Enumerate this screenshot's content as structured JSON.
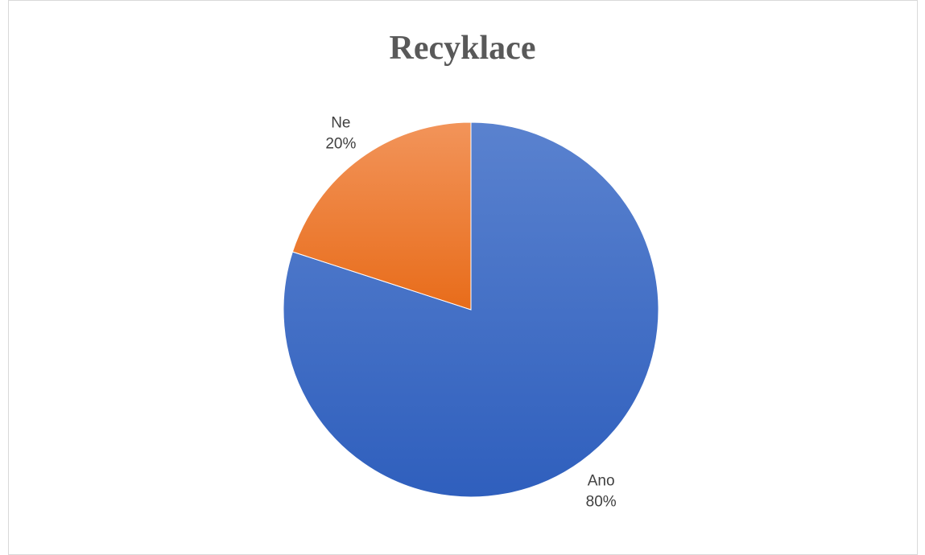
{
  "chart_data": {
    "type": "pie",
    "title": "Recyklace",
    "slices": [
      {
        "label": "Ano",
        "value": 80,
        "value_label": "80%",
        "color": "#4472c4"
      },
      {
        "label": "Ne",
        "value": 20,
        "value_label": "20%",
        "color": "#ed7d31"
      }
    ],
    "start_angle_deg": 0,
    "direction": "clockwise",
    "legend": "none"
  }
}
